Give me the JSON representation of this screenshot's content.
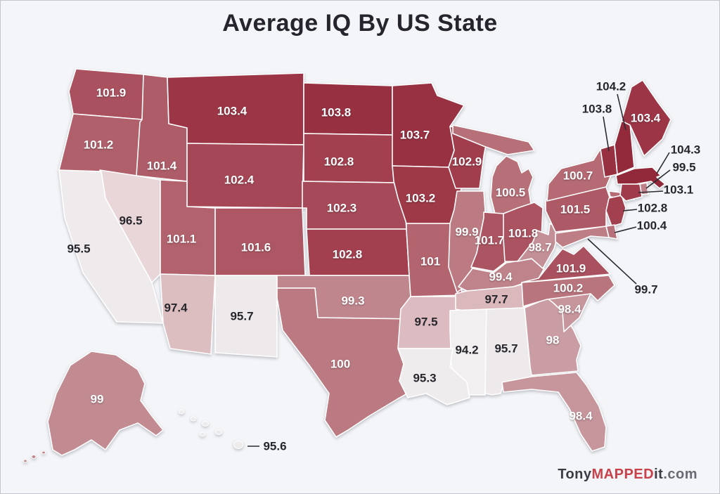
{
  "title": "Average IQ By US State",
  "watermark": {
    "parts": [
      {
        "text": "Tony",
        "color": "#3c3c44"
      },
      {
        "text": "MAPPED",
        "color": "#c8414b"
      },
      {
        "text": "it",
        "color": "#3c3c44"
      },
      {
        "text": ".com",
        "color": "#6a6a72"
      }
    ]
  },
  "map": {
    "background": "#f3f5f8",
    "state_border_color": "#ffffff",
    "label_color_light": "#ffffff",
    "label_color_dark": "#26262c",
    "callout_line_color": "#2b2b31",
    "color_scale": [
      [
        94.0,
        "#f2f0f1"
      ],
      [
        95.8,
        "#eeeaec"
      ],
      [
        96.5,
        "#e8d6d9"
      ],
      [
        97.0,
        "#e0c6c9"
      ],
      [
        97.8,
        "#d9b6ba"
      ],
      [
        98.0,
        "#c99da3"
      ],
      [
        99.0,
        "#c28b92"
      ],
      [
        100.0,
        "#bb7981"
      ],
      [
        101.0,
        "#b2646f"
      ],
      [
        102.0,
        "#a94f5d"
      ],
      [
        103.0,
        "#a03c4b"
      ],
      [
        104.3,
        "#92293a"
      ]
    ],
    "states": [
      {
        "name": "Washington",
        "value": "101.9"
      },
      {
        "name": "Oregon",
        "value": "101.2"
      },
      {
        "name": "California",
        "value": "95.5"
      },
      {
        "name": "Nevada",
        "value": "96.5"
      },
      {
        "name": "Idaho",
        "value": "101.4"
      },
      {
        "name": "Montana",
        "value": "103.4"
      },
      {
        "name": "Wyoming",
        "value": "102.4"
      },
      {
        "name": "Utah",
        "value": "101.1"
      },
      {
        "name": "Colorado",
        "value": "101.6"
      },
      {
        "name": "Arizona",
        "value": "97.4"
      },
      {
        "name": "New Mexico",
        "value": "95.7"
      },
      {
        "name": "North Dakota",
        "value": "103.8"
      },
      {
        "name": "South Dakota",
        "value": "102.8"
      },
      {
        "name": "Nebraska",
        "value": "102.3"
      },
      {
        "name": "Kansas",
        "value": "102.8"
      },
      {
        "name": "Oklahoma",
        "value": "99.3"
      },
      {
        "name": "Texas",
        "value": "100"
      },
      {
        "name": "Minnesota",
        "value": "103.7"
      },
      {
        "name": "Iowa",
        "value": "103.2"
      },
      {
        "name": "Missouri",
        "value": "101"
      },
      {
        "name": "Arkansas",
        "value": "97.5"
      },
      {
        "name": "Wisconsin",
        "value": "102.9"
      },
      {
        "name": "Illinois",
        "value": "99.9"
      },
      {
        "name": "Michigan",
        "value": "100.5"
      },
      {
        "name": "Indiana",
        "value": "101.7"
      },
      {
        "name": "Ohio",
        "value": "101.8"
      },
      {
        "name": "Kentucky",
        "value": "99.4"
      },
      {
        "name": "Tennessee",
        "value": "97.7"
      },
      {
        "name": "Mississippi",
        "value": "94.2"
      },
      {
        "name": "Alabama",
        "value": "95.7"
      },
      {
        "name": "Georgia",
        "value": "98"
      },
      {
        "name": "South Carolina",
        "value": "98.4"
      },
      {
        "name": "North Carolina",
        "value": "100.2"
      },
      {
        "name": "Virginia",
        "value": "101.9"
      },
      {
        "name": "West Virginia",
        "value": "98.7"
      },
      {
        "name": "Florida",
        "value": "98.4"
      },
      {
        "name": "Louisiana",
        "value": "95.3"
      },
      {
        "name": "Pennsylvania",
        "value": "101.5"
      },
      {
        "name": "New York",
        "value": "100.7"
      },
      {
        "name": "New Jersey",
        "value": "102.8"
      },
      {
        "name": "Delaware",
        "value": "100.4"
      },
      {
        "name": "Maryland",
        "value": "99.7"
      },
      {
        "name": "Vermont",
        "value": "103.8"
      },
      {
        "name": "New Hampshire",
        "value": "104.2"
      },
      {
        "name": "Maine",
        "value": "103.4"
      },
      {
        "name": "Massachusetts",
        "value": "104.3"
      },
      {
        "name": "Rhode Island",
        "value": "99.5"
      },
      {
        "name": "Connecticut",
        "value": "103.1"
      },
      {
        "name": "Alaska",
        "value": "99"
      },
      {
        "name": "Hawaii",
        "value": "95.6"
      }
    ]
  }
}
